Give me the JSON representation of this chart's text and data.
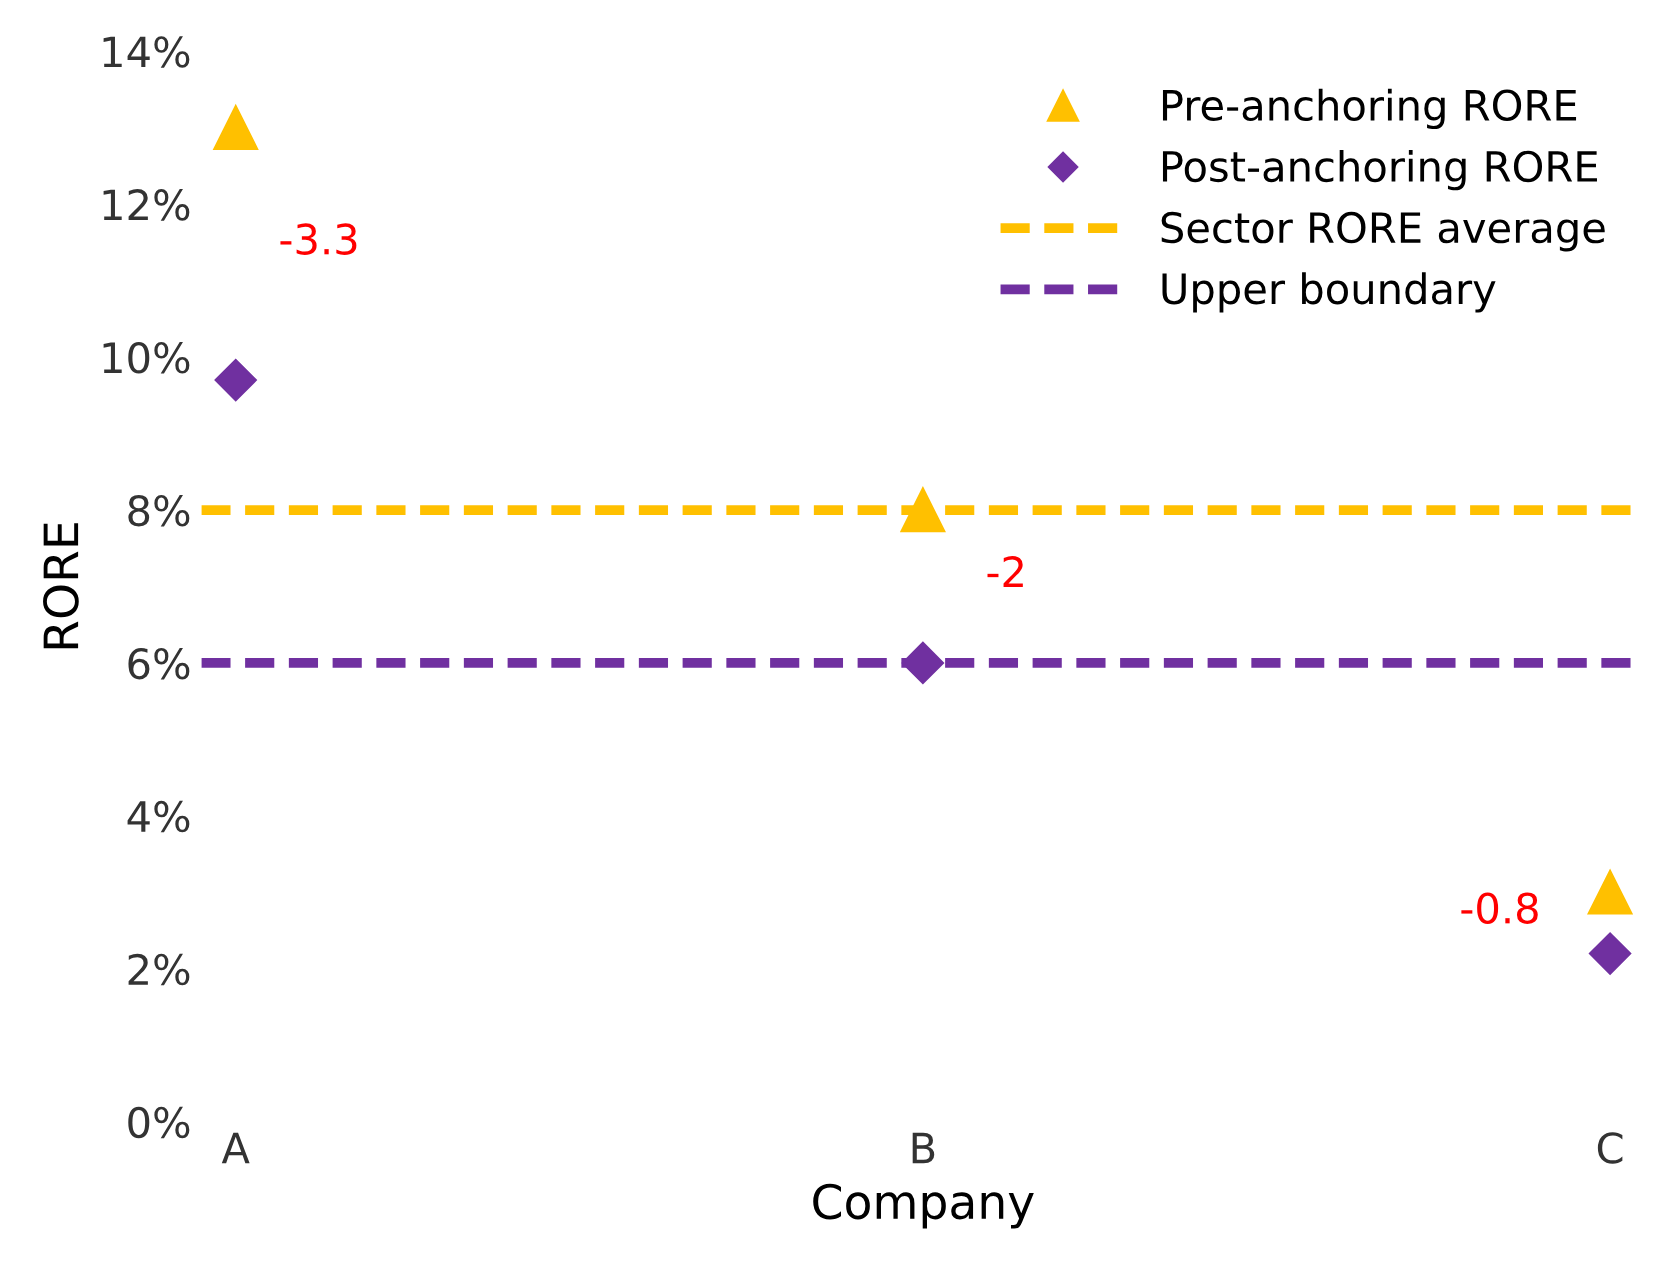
{
  "chart_data": {
    "type": "scatter",
    "xlabel": "Company",
    "ylabel": "RORE",
    "categories": [
      "A",
      "B",
      "C"
    ],
    "series": [
      {
        "name": "Pre-anchoring RORE",
        "color": "#ffc000",
        "marker": "triangle",
        "values": [
          13.0,
          8.0,
          3.0
        ]
      },
      {
        "name": "Post-anchoring RORE",
        "color": "#7030a0",
        "marker": "diamond",
        "values": [
          9.7,
          6.0,
          2.2
        ]
      }
    ],
    "ref_lines": [
      {
        "axis": "y",
        "value": 8,
        "label": "Sector RORE average",
        "color": "#ffc000",
        "line_style": "dashed"
      },
      {
        "axis": "y",
        "value": 6,
        "label": "Upper boundary",
        "color": "#7030a0",
        "line_style": "dashed"
      }
    ],
    "annotations": [
      "-3.3",
      "-2",
      "-0.8"
    ],
    "ylim": [
      0,
      14
    ],
    "yticks": [
      {
        "value": 0,
        "label": "0%"
      },
      {
        "value": 2,
        "label": "2%"
      },
      {
        "value": 4,
        "label": "4%"
      },
      {
        "value": 6,
        "label": "6%"
      },
      {
        "value": 8,
        "label": "8%"
      },
      {
        "value": 10,
        "label": "10%"
      },
      {
        "value": 12,
        "label": "12%"
      },
      {
        "value": 14,
        "label": "14%"
      }
    ],
    "legend": "top right"
  }
}
